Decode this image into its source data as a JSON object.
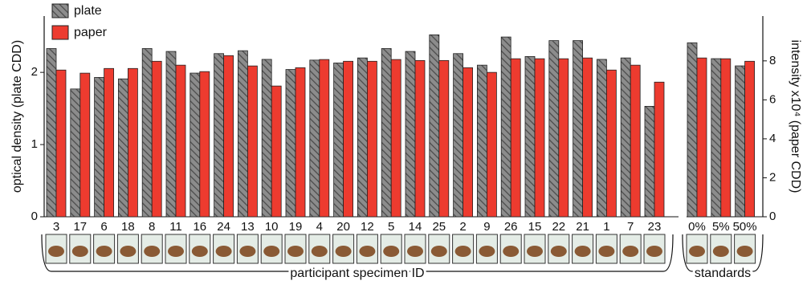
{
  "chart_data": {
    "type": "bar",
    "ylabel": "optical density (plate CDD)",
    "y2label": "intensity x10⁴ (paper CDD)",
    "categories": [
      "3",
      "17",
      "6",
      "18",
      "8",
      "11",
      "16",
      "24",
      "13",
      "10",
      "19",
      "4",
      "20",
      "12",
      "5",
      "14",
      "25",
      "2",
      "9",
      "26",
      "15",
      "22",
      "21",
      "1",
      "7",
      "23",
      "0%",
      "5%",
      "50%"
    ],
    "groups": [
      "participant specimen ID",
      "standards"
    ],
    "series": [
      {
        "name": "plate",
        "color": "#7f7f7f",
        "hatch": true,
        "values": [
          2.33,
          1.77,
          1.93,
          1.91,
          2.33,
          2.29,
          1.99,
          2.26,
          2.3,
          2.18,
          2.04,
          2.17,
          2.13,
          2.2,
          2.33,
          2.29,
          2.52,
          2.26,
          2.1,
          2.49,
          2.22,
          2.44,
          2.44,
          2.18,
          2.2,
          1.53,
          2.41,
          2.19,
          2.09
        ]
      },
      {
        "name": "paper",
        "color": "#ed3b2f",
        "axis": "y2",
        "values": [
          7.53,
          7.37,
          7.61,
          7.61,
          7.98,
          7.78,
          7.45,
          8.27,
          7.74,
          6.71,
          7.65,
          8.07,
          7.98,
          7.98,
          8.07,
          8.02,
          8.02,
          7.65,
          7.41,
          8.11,
          8.11,
          8.11,
          8.15,
          7.53,
          7.78,
          6.91,
          8.15,
          8.11,
          7.98
        ]
      }
    ],
    "ylim": [
      0,
      2.78
    ],
    "yticks": [
      0,
      1,
      2
    ],
    "y2lim": [
      0,
      10.3
    ],
    "y2ticks": [
      0,
      2,
      4,
      6,
      8
    ],
    "grid": false,
    "legend": "top-left"
  }
}
